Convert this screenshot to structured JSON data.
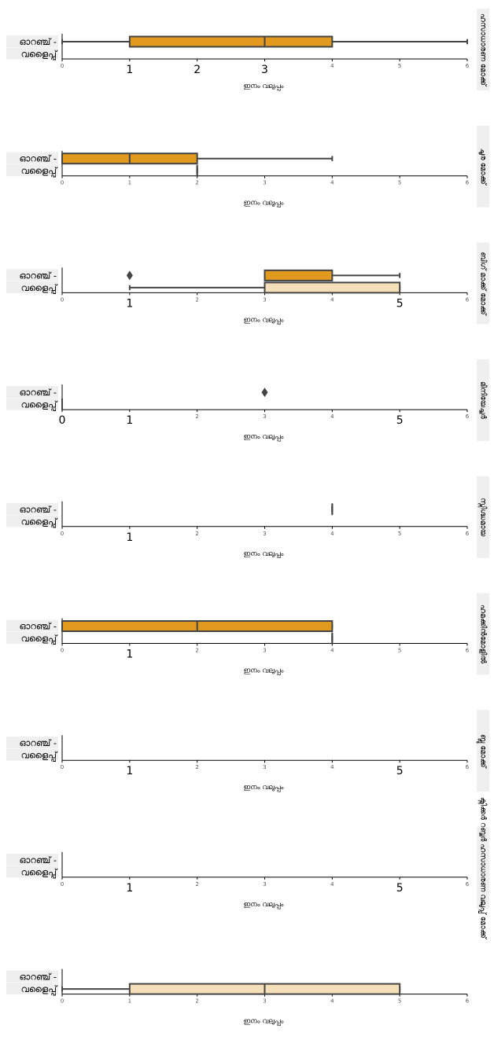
{
  "chart_data": {
    "type": "box",
    "orientation": "horizontal",
    "categories": [
      "ഓറഞ്ച്",
      "വളൈപ്പ്"
    ],
    "xlim": [
      0,
      6
    ],
    "x_ticks": [
      0,
      1,
      2,
      3,
      4,
      5,
      6
    ],
    "colors": {
      "ഓറഞ്ച്": "#e19a1e",
      "വളൈപ്പ്": "#f5dfb8",
      "edge": "#444444",
      "axis": "#000000"
    },
    "panels": [
      {
        "title": "ഹസാധാരണ മോക്ക്",
        "xlabel": "ഇനം വലുപ്പം",
        "large_ticks": [
          1,
          2,
          3
        ],
        "boxes": [
          {
            "category": "ഓറഞ്ച്",
            "whisker_low": 0,
            "q1": 1,
            "median": 3,
            "q3": 4,
            "whisker_high": 6,
            "outliers": []
          }
        ]
      },
      {
        "title": "ചൂര മോക്ക്",
        "xlabel": "ഇനം വലുപ്പം",
        "large_ticks": [],
        "boxes": [
          {
            "category": "ഓറഞ്ച്",
            "whisker_low": 0,
            "q1": 0,
            "median": 1,
            "q3": 2,
            "whisker_high": 4,
            "outliers": []
          },
          {
            "category": "വളൈപ്പ്",
            "whisker_low": 2,
            "q1": 2,
            "median": 2,
            "q3": 2,
            "whisker_high": 2,
            "outliers": []
          }
        ]
      },
      {
        "title": "ബിഗ് മാക്ക് മോക്ക്",
        "xlabel": "ഇനം വലുപ്പം",
        "large_ticks": [
          1,
          5
        ],
        "boxes": [
          {
            "category": "ഓറഞ്ച്",
            "whisker_low": 3,
            "q1": 3,
            "median": 3,
            "q3": 4,
            "whisker_high": 5,
            "outliers": [
              1
            ]
          },
          {
            "category": "വളൈപ്പ്",
            "whisker_low": 1,
            "q1": 3,
            "median": 3,
            "q3": 5,
            "whisker_high": 5,
            "outliers": []
          }
        ]
      },
      {
        "title": "മിനിയേച്ചർ",
        "xlabel": "ഇനം വലുപ്പം",
        "large_ticks": [
          0,
          1,
          5
        ],
        "boxes": [
          {
            "category": "ഓറഞ്ച്",
            "outliers": [
              3
            ]
          },
          {
            "category": "വളൈപ്പ്",
            "whisker_low": 0,
            "q1": 0,
            "median": 0,
            "q3": 0,
            "whisker_high": 0,
            "outliers": []
          }
        ]
      },
      {
        "title": "സ്നിഗ്ദ്ധമായ",
        "xlabel": "ഇനം വലുപ്പം",
        "large_ticks": [
          1
        ],
        "boxes": [
          {
            "category": "ഓറഞ്ച്",
            "whisker_low": 4,
            "q1": 4,
            "median": 4,
            "q3": 4,
            "whisker_high": 4,
            "outliers": []
          }
        ]
      },
      {
        "title": "ഹമക്കിൻമോളിൽ",
        "xlabel": "ഇനം വലുപ്പം",
        "large_ticks": [
          1
        ],
        "boxes": [
          {
            "category": "ഓറഞ്ച്",
            "whisker_low": 0,
            "q1": 0,
            "median": 2,
            "q3": 4,
            "whisker_high": 4,
            "outliers": []
          },
          {
            "category": "വളൈപ്പ്",
            "whisker_low": 4,
            "q1": 4,
            "median": 4,
            "q3": 4,
            "whisker_high": 4,
            "outliers": []
          }
        ]
      },
      {
        "title": "ബ്ലൂ മോക്ക്",
        "xlabel": "ഇനം വലുപ്പം",
        "large_ticks": [
          1,
          5
        ],
        "boxes": []
      },
      {
        "title": "ക്നിക്കർ റബ്ബർ ഹസാധാരണ വലുപ്പ് മോക്ക്",
        "xlabel": "ഇനം വലുപ്പം",
        "large_ticks": [
          1,
          5
        ],
        "boxes": []
      },
      {
        "title": "",
        "xlabel": "ഇനം വലുപ്പം",
        "large_ticks": [],
        "boxes": [
          {
            "category": "വളൈപ്പ്",
            "whisker_low": 0,
            "q1": 1,
            "median": 3,
            "q3": 5,
            "whisker_high": 5,
            "outliers": []
          }
        ]
      }
    ]
  }
}
